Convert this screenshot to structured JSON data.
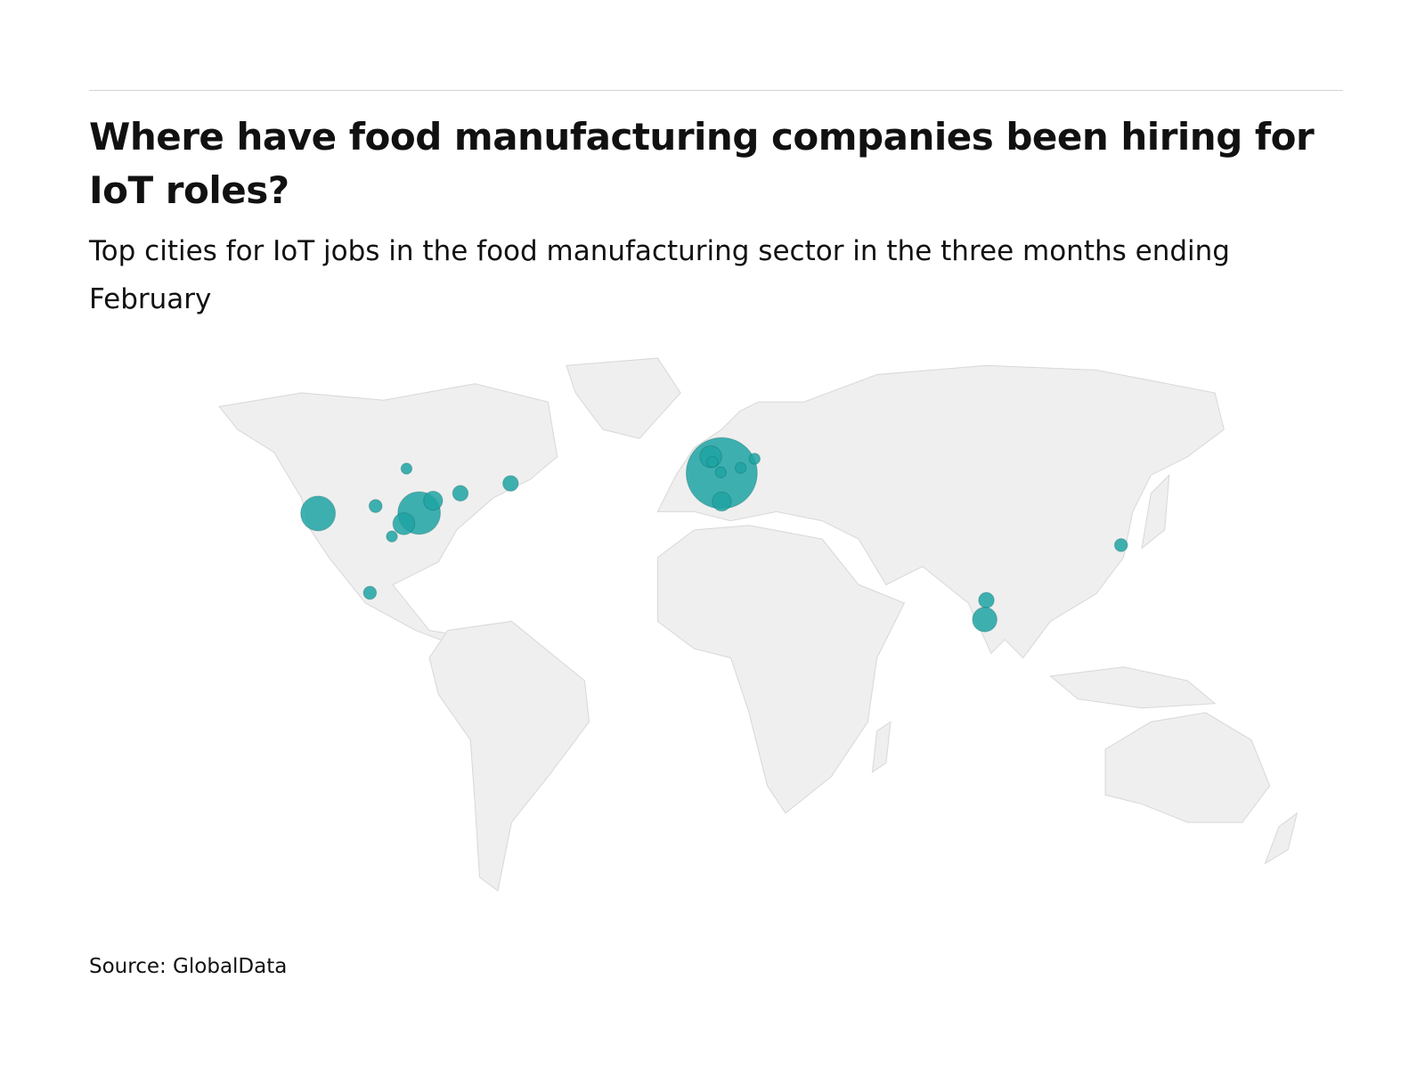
{
  "chart_data": {
    "type": "bubble-map",
    "title": "Where have food manufacturing companies been hiring for IoT roles?",
    "subtitle": "Top cities for IoT jobs in the food manufacturing sector in the three months ending February",
    "source": "Source: GlobalData",
    "color": "#1fa3a3",
    "points": [
      {
        "lon": 1.4,
        "lat": 48.7,
        "value": 42
      },
      {
        "lon": -1.9,
        "lat": 52.7,
        "value": 4
      },
      {
        "lon": -1.4,
        "lat": 51.4,
        "value": 1
      },
      {
        "lon": 1.1,
        "lat": 48.9,
        "value": 1
      },
      {
        "lon": 7.1,
        "lat": 50.0,
        "value": 1
      },
      {
        "lon": 11.3,
        "lat": 52.2,
        "value": 1
      },
      {
        "lon": 1.4,
        "lat": 41.8,
        "value": 3
      },
      {
        "lon": -120.0,
        "lat": 38.9,
        "value": 10
      },
      {
        "lon": -89.6,
        "lat": 39.0,
        "value": 15
      },
      {
        "lon": -85.4,
        "lat": 42.0,
        "value": 3
      },
      {
        "lon": -94.2,
        "lat": 36.4,
        "value": 4
      },
      {
        "lon": -97.8,
        "lat": 33.3,
        "value": 1
      },
      {
        "lon": -102.7,
        "lat": 40.7,
        "value": 1.4
      },
      {
        "lon": -93.4,
        "lat": 49.8,
        "value": 1
      },
      {
        "lon": -77.2,
        "lat": 43.8,
        "value": 2
      },
      {
        "lon": -62.1,
        "lat": 46.2,
        "value": 2
      },
      {
        "lon": -104.4,
        "lat": 19.6,
        "value": 1.4
      },
      {
        "lon": 81.0,
        "lat": 17.8,
        "value": 2
      },
      {
        "lon": 80.5,
        "lat": 13.1,
        "value": 5
      },
      {
        "lon": 121.5,
        "lat": 31.2,
        "value": 1.4
      }
    ]
  }
}
